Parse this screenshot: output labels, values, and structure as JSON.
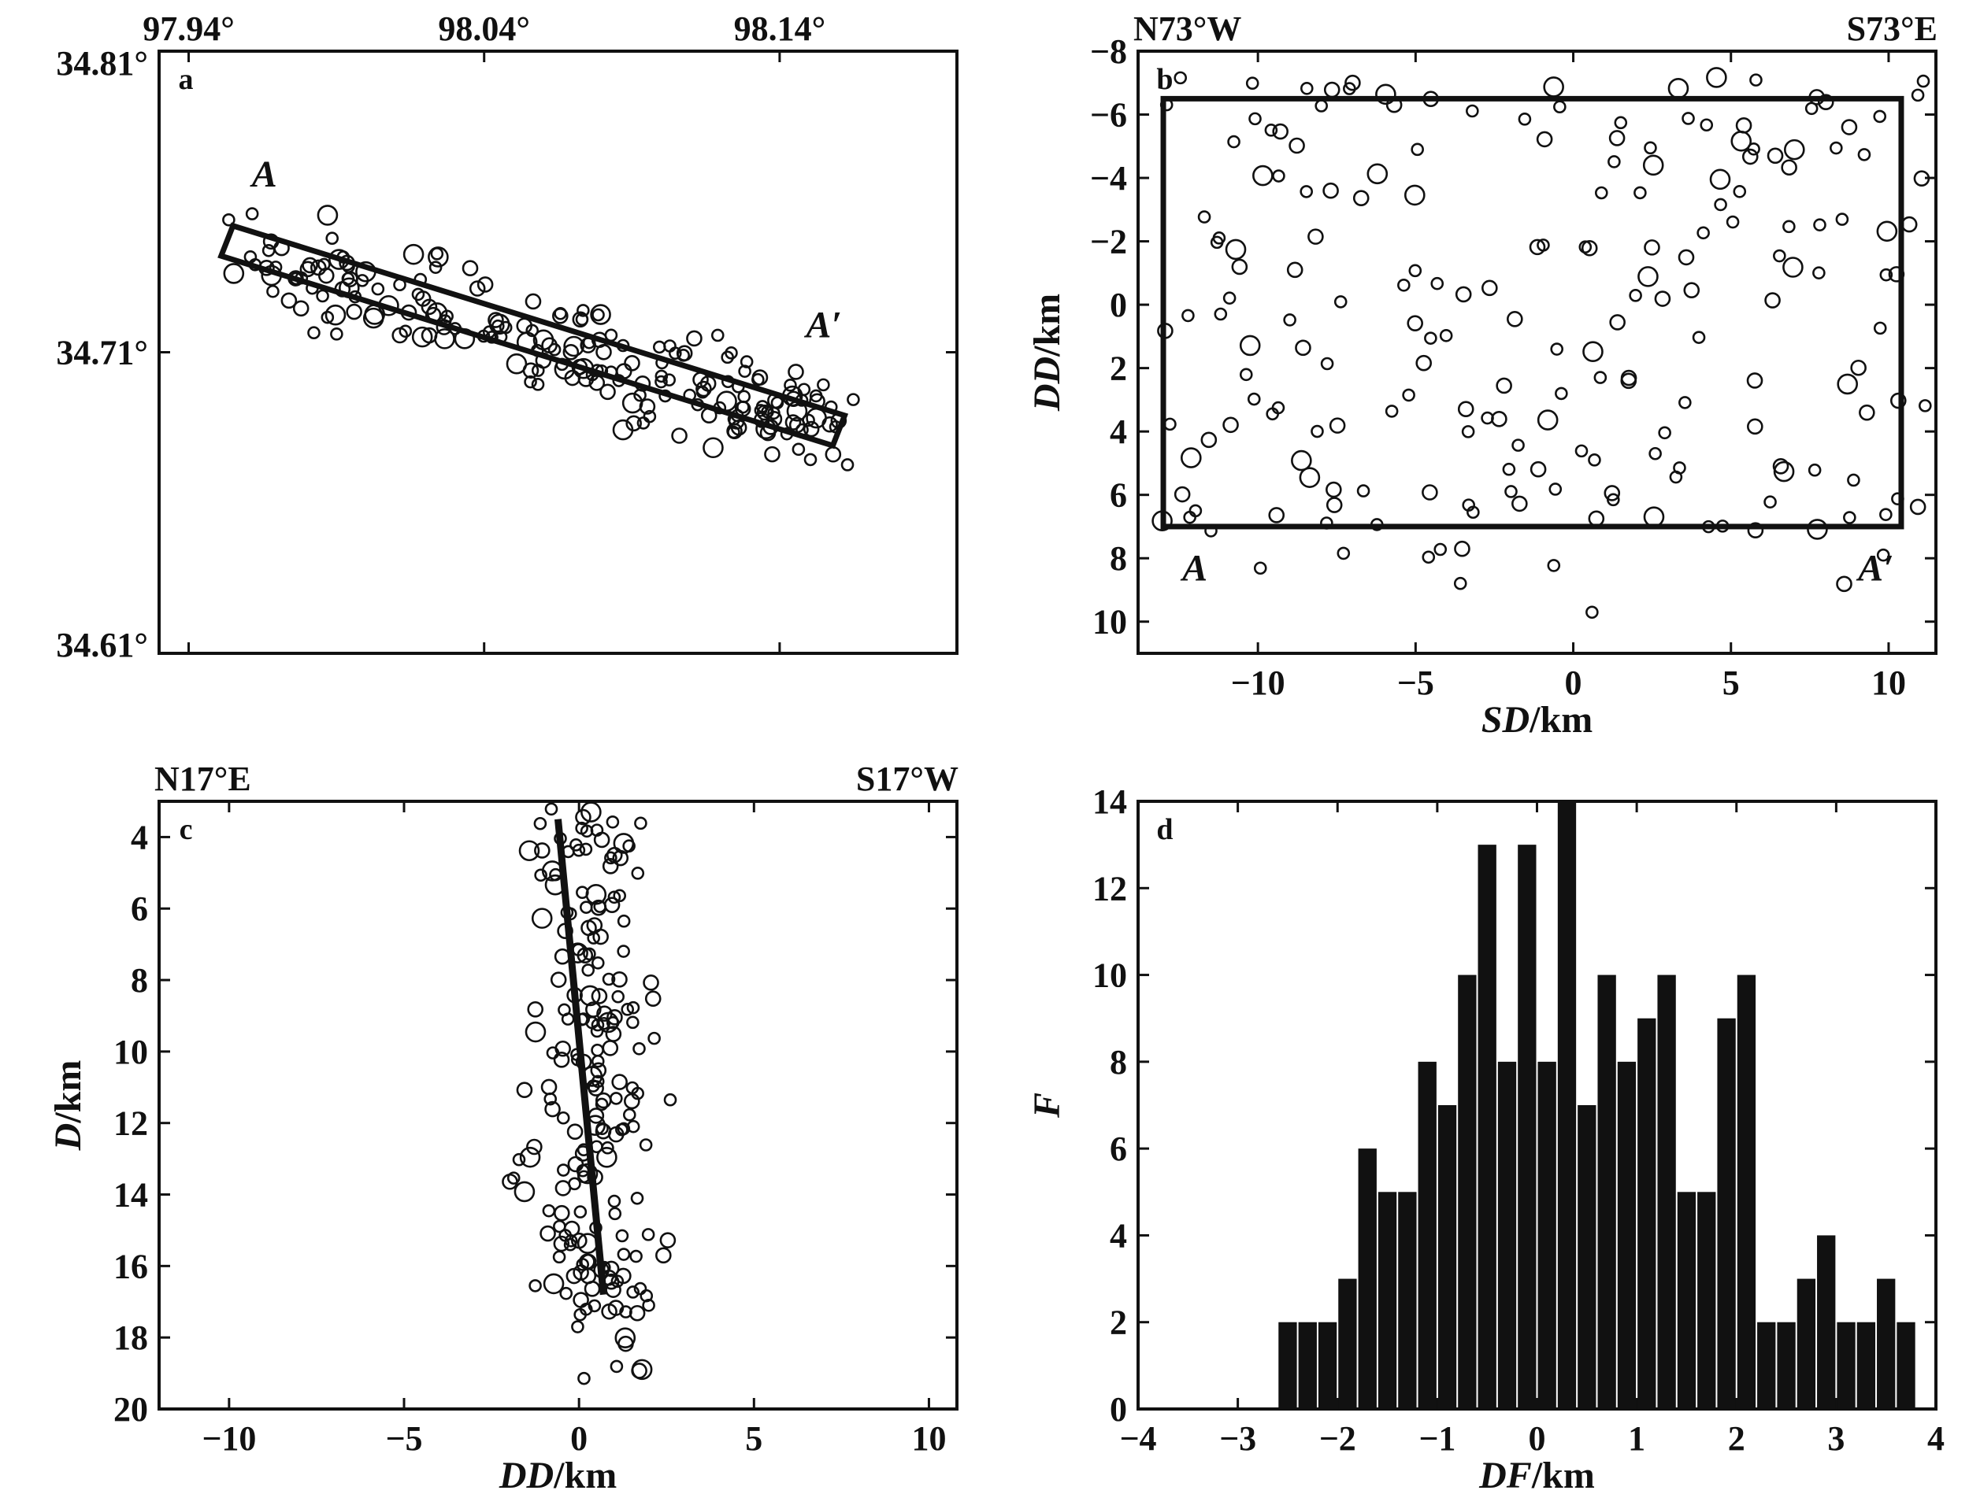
{
  "figure": {
    "panels": [
      "a",
      "b",
      "c",
      "d"
    ],
    "colors": {
      "ink": "#111111",
      "background": "#ffffff"
    }
  },
  "chart_data": [
    {
      "id": "a",
      "type": "scatter",
      "panel_label": "a",
      "title": "",
      "xlabel": "",
      "ylabel": "",
      "x_ticks": [
        "97.94°",
        "98.04°",
        "98.14°"
      ],
      "y_ticks": [
        "34.81°",
        "34.71°",
        "34.61°"
      ],
      "x_axis_position": "top",
      "xlim": [
        97.93,
        98.2
      ],
      "ylim": [
        34.61,
        34.81
      ],
      "grid": false,
      "marker": "open-circle",
      "annotations": [
        "A",
        "A′"
      ],
      "profile_box": [
        [
          97.955,
          34.752
        ],
        [
          98.162,
          34.689
        ],
        [
          98.158,
          34.679
        ],
        [
          97.951,
          34.742
        ]
      ],
      "trend": {
        "from": [
          97.955,
          34.745
        ],
        "to": [
          98.16,
          34.684
        ],
        "spread": 0.02
      },
      "n_events": 210
    },
    {
      "id": "b",
      "type": "scatter",
      "panel_label": "b",
      "title": "",
      "corner_left": "N73°W",
      "corner_right": "S73°E",
      "xlabel": "SD/km",
      "ylabel": "DD/km",
      "x_ticks": [
        "−10",
        "−5",
        "0",
        "5",
        "10"
      ],
      "y_ticks": [
        "−8",
        "−6",
        "−4",
        "−2",
        "0",
        "2",
        "4",
        "6",
        "8",
        "10"
      ],
      "xlim": [
        -13.8,
        11.5
      ],
      "ylim": [
        -8,
        11
      ],
      "y_inverted": true,
      "grid": false,
      "marker": "open-circle",
      "annotations": [
        "A",
        "A′"
      ],
      "rectangle": {
        "x": [
          -13,
          10.4
        ],
        "y": [
          -6.5,
          7
        ]
      },
      "n_events": 200
    },
    {
      "id": "c",
      "type": "scatter",
      "panel_label": "c",
      "title": "",
      "corner_left": "N17°E",
      "corner_right": "S17°W",
      "xlabel": "DD/km",
      "ylabel": "D/km",
      "x_ticks": [
        "−10",
        "−5",
        "0",
        "5",
        "10"
      ],
      "y_ticks": [
        "4",
        "6",
        "8",
        "10",
        "12",
        "14",
        "16",
        "18",
        "20"
      ],
      "xlim": [
        -12,
        10.8
      ],
      "ylim": [
        3,
        20
      ],
      "y_inverted": true,
      "grid": false,
      "marker": "open-circle",
      "fault_line": {
        "from": [
          -0.6,
          3.5
        ],
        "to": [
          0.7,
          16.8
        ]
      },
      "n_events": 200
    },
    {
      "id": "d",
      "type": "bar",
      "panel_label": "d",
      "title": "",
      "xlabel": "DF/km",
      "ylabel": "F",
      "x_ticks": [
        "−4",
        "−3",
        "−2",
        "−1",
        "0",
        "1",
        "2",
        "3",
        "4"
      ],
      "y_ticks": [
        "0",
        "2",
        "4",
        "6",
        "8",
        "10",
        "12",
        "14"
      ],
      "xlim": [
        -4,
        4
      ],
      "ylim": [
        0,
        14
      ],
      "grid": false,
      "bin_width": 0.2,
      "bins": [
        {
          "x": -2.6,
          "value": 2
        },
        {
          "x": -2.4,
          "value": 2
        },
        {
          "x": -2.2,
          "value": 2
        },
        {
          "x": -2.0,
          "value": 3
        },
        {
          "x": -1.8,
          "value": 6
        },
        {
          "x": -1.6,
          "value": 5
        },
        {
          "x": -1.4,
          "value": 5
        },
        {
          "x": -1.2,
          "value": 8
        },
        {
          "x": -1.0,
          "value": 7
        },
        {
          "x": -0.8,
          "value": 10
        },
        {
          "x": -0.6,
          "value": 13
        },
        {
          "x": -0.4,
          "value": 8
        },
        {
          "x": -0.2,
          "value": 13
        },
        {
          "x": 0.0,
          "value": 8
        },
        {
          "x": 0.2,
          "value": 14
        },
        {
          "x": 0.4,
          "value": 7
        },
        {
          "x": 0.6,
          "value": 10
        },
        {
          "x": 0.8,
          "value": 8
        },
        {
          "x": 1.0,
          "value": 9
        },
        {
          "x": 1.2,
          "value": 10
        },
        {
          "x": 1.4,
          "value": 5
        },
        {
          "x": 1.6,
          "value": 5
        },
        {
          "x": 1.8,
          "value": 9
        },
        {
          "x": 2.0,
          "value": 10
        },
        {
          "x": 2.2,
          "value": 2
        },
        {
          "x": 2.4,
          "value": 2
        },
        {
          "x": 2.6,
          "value": 3
        },
        {
          "x": 2.8,
          "value": 4
        },
        {
          "x": 3.0,
          "value": 2
        },
        {
          "x": 3.2,
          "value": 2
        },
        {
          "x": 3.4,
          "value": 3
        },
        {
          "x": 3.6,
          "value": 2
        }
      ]
    }
  ]
}
